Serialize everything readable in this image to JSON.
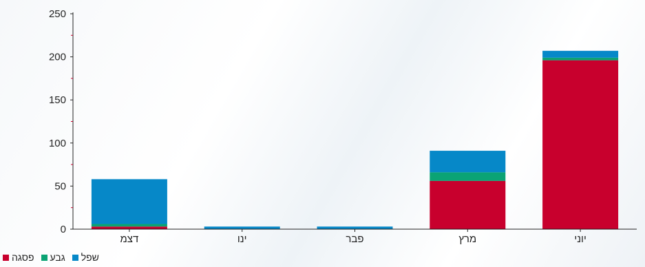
{
  "chart_data": {
    "type": "bar",
    "stacked": true,
    "categories": [
      "דצמ",
      "ינו",
      "פבר",
      "מרץ",
      "יוני"
    ],
    "series": [
      {
        "name": "פסגה",
        "color": "#c8002d",
        "values": [
          3,
          0,
          0,
          56,
          196
        ]
      },
      {
        "name": "גבע",
        "color": "#0ba374",
        "values": [
          3,
          0,
          0,
          10,
          3
        ]
      },
      {
        "name": "שפל",
        "color": "#0688c8",
        "values": [
          52,
          3,
          3,
          25,
          8
        ]
      }
    ],
    "ylim": [
      0,
      250
    ],
    "yticks": [
      0,
      50,
      100,
      150,
      200,
      250
    ],
    "grid": false,
    "legend": "bottom-left"
  }
}
